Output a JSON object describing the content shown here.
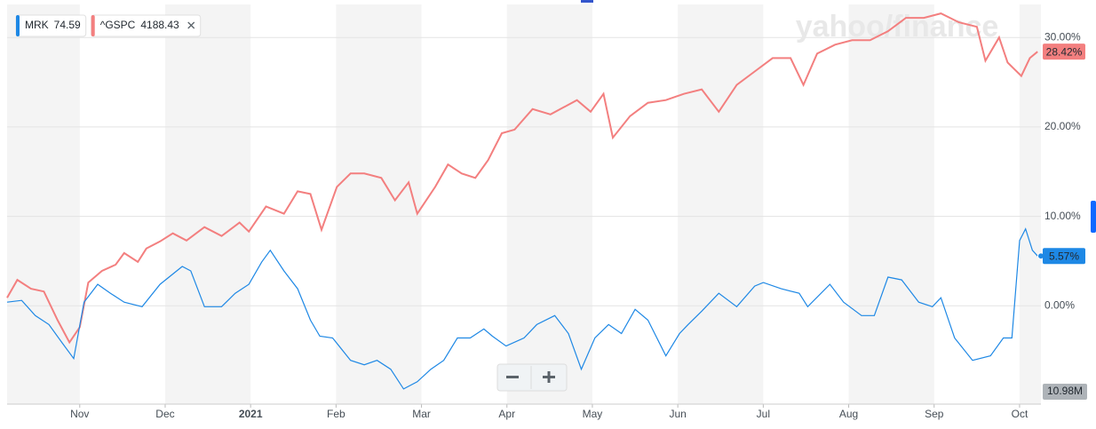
{
  "chart_data": {
    "type": "line",
    "watermark": "yahoo/finance",
    "volume_label": "10.98M",
    "xlim": [
      0.15,
      12.25
    ],
    "xticks": [
      {
        "value": 1,
        "label": "Nov"
      },
      {
        "value": 2,
        "label": "Dec"
      },
      {
        "value": 3,
        "label": "2021"
      },
      {
        "value": 4,
        "label": "Feb"
      },
      {
        "value": 5,
        "label": "Mar"
      },
      {
        "value": 6,
        "label": "Apr"
      },
      {
        "value": 7,
        "label": "May"
      },
      {
        "value": 8,
        "label": "Jun"
      },
      {
        "value": 9,
        "label": "Jul"
      },
      {
        "value": 10,
        "label": "Aug"
      },
      {
        "value": 11,
        "label": "Sep"
      },
      {
        "value": 12,
        "label": "Oct"
      }
    ],
    "ylim": [
      -11,
      33.7
    ],
    "yticks": [
      {
        "value": 0,
        "label": "0.00%"
      },
      {
        "value": 10,
        "label": "10.00%"
      },
      {
        "value": 20,
        "label": "20.00%"
      },
      {
        "value": 30,
        "label": "30.00%"
      }
    ],
    "grid": true,
    "series": [
      {
        "name": "MRK",
        "price": 74.59,
        "color": "#1e88e5",
        "last_change": {
          "value": 5.57,
          "label": "5.57%"
        },
        "x": [
          0.15,
          0.32,
          0.48,
          0.64,
          0.79,
          0.93,
          1.05,
          1.21,
          1.36,
          1.52,
          1.73,
          1.94,
          2.2,
          2.3,
          2.46,
          2.66,
          2.82,
          2.98,
          3.13,
          3.23,
          3.39,
          3.55,
          3.7,
          3.81,
          3.96,
          4.17,
          4.33,
          4.48,
          4.64,
          4.79,
          4.95,
          5.11,
          5.26,
          5.42,
          5.57,
          5.73,
          5.83,
          5.99,
          6.2,
          6.35,
          6.56,
          6.72,
          6.87,
          7.03,
          7.19,
          7.34,
          7.5,
          7.65,
          7.86,
          8.02,
          8.12,
          8.28,
          8.48,
          8.69,
          8.9,
          9.0,
          9.21,
          9.42,
          9.52,
          9.78,
          9.94,
          10.15,
          10.3,
          10.46,
          10.62,
          10.82,
          10.98,
          11.08,
          11.24,
          11.45,
          11.66,
          11.81,
          11.91,
          12.0,
          12.07,
          12.15,
          12.21
        ],
        "values": [
          0.4,
          0.6,
          -1.1,
          -2.1,
          -4.1,
          -5.9,
          0.4,
          2.4,
          1.4,
          0.4,
          -0.1,
          2.4,
          4.4,
          3.9,
          -0.1,
          -0.1,
          1.4,
          2.4,
          4.9,
          6.2,
          3.9,
          1.9,
          -1.6,
          -3.4,
          -3.6,
          -6.1,
          -6.6,
          -6.1,
          -7.1,
          -9.3,
          -8.5,
          -7.1,
          -6.1,
          -3.6,
          -3.6,
          -2.6,
          -3.4,
          -4.5,
          -3.6,
          -2.1,
          -1.1,
          -3.1,
          -7.1,
          -3.6,
          -2.1,
          -3.1,
          -0.4,
          -1.6,
          -5.6,
          -3.1,
          -2.1,
          -0.6,
          1.4,
          -0.1,
          2.2,
          2.6,
          1.9,
          1.4,
          -0.1,
          2.4,
          0.4,
          -1.1,
          -1.1,
          3.2,
          2.9,
          0.4,
          -0.1,
          0.9,
          -3.6,
          -6.1,
          -5.6,
          -3.6,
          -3.6,
          7.3,
          8.6,
          6.2,
          5.57
        ]
      },
      {
        "name": "^GSPC",
        "price": 4188.43,
        "color": "#f37f7f",
        "last_change": {
          "value": 28.42,
          "label": "28.42%"
        },
        "x": [
          0.15,
          0.27,
          0.43,
          0.58,
          0.74,
          0.88,
          1.0,
          1.1,
          1.26,
          1.42,
          1.52,
          1.68,
          1.78,
          1.94,
          2.09,
          2.25,
          2.46,
          2.66,
          2.87,
          2.98,
          3.18,
          3.39,
          3.55,
          3.7,
          3.83,
          4.01,
          4.17,
          4.33,
          4.53,
          4.69,
          4.85,
          4.95,
          5.16,
          5.31,
          5.47,
          5.63,
          5.78,
          5.94,
          6.09,
          6.3,
          6.51,
          6.82,
          6.98,
          7.13,
          7.24,
          7.44,
          7.65,
          7.86,
          8.07,
          8.28,
          8.48,
          8.69,
          8.9,
          9.11,
          9.32,
          9.47,
          9.63,
          9.84,
          10.04,
          10.25,
          10.46,
          10.67,
          10.88,
          11.08,
          11.29,
          11.5,
          11.6,
          11.76,
          11.86,
          12.02,
          12.12,
          12.21
        ],
        "values": [
          0.9,
          2.9,
          1.9,
          1.6,
          -1.6,
          -4.1,
          -2.4,
          2.6,
          3.9,
          4.6,
          5.9,
          4.9,
          6.4,
          7.2,
          8.1,
          7.3,
          8.8,
          7.8,
          9.3,
          8.3,
          11.1,
          10.3,
          12.8,
          12.5,
          8.5,
          13.3,
          14.8,
          14.8,
          14.3,
          11.8,
          13.8,
          10.3,
          13.3,
          15.8,
          14.8,
          14.3,
          16.3,
          19.3,
          19.7,
          22.0,
          21.4,
          23.0,
          21.7,
          23.7,
          18.8,
          21.2,
          22.7,
          23.0,
          23.7,
          24.2,
          21.7,
          24.7,
          26.2,
          27.7,
          27.7,
          24.7,
          28.2,
          29.2,
          29.7,
          29.7,
          30.7,
          32.2,
          32.2,
          32.7,
          31.7,
          31.2,
          27.4,
          30.0,
          27.2,
          25.7,
          27.7,
          28.42
        ]
      }
    ]
  }
}
